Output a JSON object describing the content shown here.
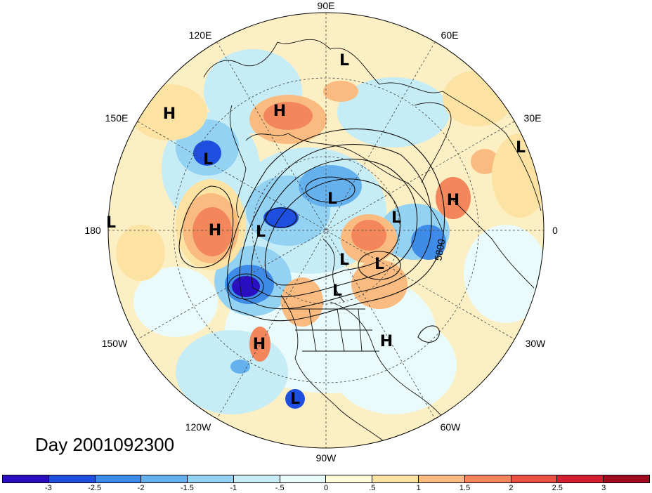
{
  "map": {
    "projection": "north-polar-stereographic",
    "longitude_labels": [
      "90E",
      "60E",
      "30E",
      "0",
      "30W",
      "60W",
      "90W",
      "120W",
      "150W",
      "180",
      "150E",
      "120E"
    ],
    "contour_label": "5800",
    "pressure_centers": [
      {
        "label": "L",
        "name": "low-east-asia-north"
      },
      {
        "label": "H",
        "name": "high-far-east-siberia"
      },
      {
        "label": "H",
        "name": "high-siberia"
      },
      {
        "label": "L",
        "name": "low-kamchatka"
      },
      {
        "label": "L",
        "name": "low-europe-east"
      },
      {
        "label": "H",
        "name": "high-europe"
      },
      {
        "label": "L",
        "name": "low-dateline"
      },
      {
        "label": "H",
        "name": "high-north-pacific"
      },
      {
        "label": "L",
        "name": "low-arctic-siberia"
      },
      {
        "label": "L",
        "name": "low-arctic-1"
      },
      {
        "label": "L",
        "name": "low-scandinavia"
      },
      {
        "label": "L",
        "name": "low-greenland-east"
      },
      {
        "label": "L",
        "name": "low-arctic-2"
      },
      {
        "label": "L",
        "name": "low-hudson"
      },
      {
        "label": "H",
        "name": "high-northeast-pacific"
      },
      {
        "label": "H",
        "name": "high-atlantic"
      },
      {
        "label": "L",
        "name": "low-east-pacific"
      }
    ]
  },
  "date_label": "Day 2001092300",
  "colorbar": {
    "colors": [
      "#2a0fc2",
      "#1f4fe0",
      "#3f8ce8",
      "#65b1ee",
      "#93d2f2",
      "#c6edf6",
      "#e9fbfb",
      "#fffad8",
      "#fde3a3",
      "#f9bb80",
      "#f3875b",
      "#ea5142",
      "#d31f2f",
      "#a00b1e"
    ],
    "ticks": [
      "-3",
      "-2.5",
      "-2",
      "-1.5",
      "-1",
      "-.5",
      "0",
      ".5",
      "1",
      "1.5",
      "2",
      "2.5",
      "3"
    ]
  }
}
